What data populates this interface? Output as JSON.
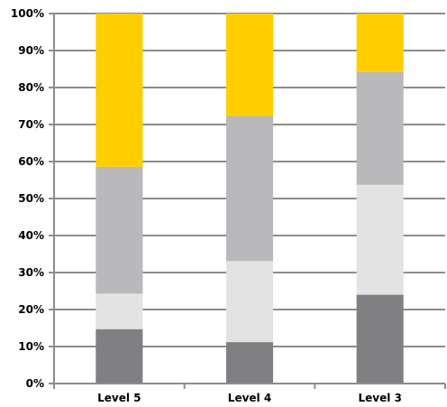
{
  "chart_data": {
    "type": "bar",
    "stacked": true,
    "categories": [
      "Level 5",
      "Level 4",
      "Level 3"
    ],
    "series": [
      {
        "values": [
          14.7,
          11.2,
          24.0
        ],
        "color": "#808083"
      },
      {
        "values": [
          9.6,
          21.9,
          29.7
        ],
        "color": "#e3e3e3"
      },
      {
        "values": [
          34.3,
          39.2,
          30.5
        ],
        "color": "#b9b9bb"
      },
      {
        "values": [
          41.4,
          27.7,
          15.8
        ],
        "color": "#ffcd00"
      }
    ],
    "yticks": [
      "0%",
      "10%",
      "20%",
      "30%",
      "40%",
      "50%",
      "60%",
      "70%",
      "80%",
      "90%",
      "100%"
    ],
    "ylim": [
      0,
      100
    ],
    "grid": true,
    "gridline_color": "#8c8c8c"
  }
}
